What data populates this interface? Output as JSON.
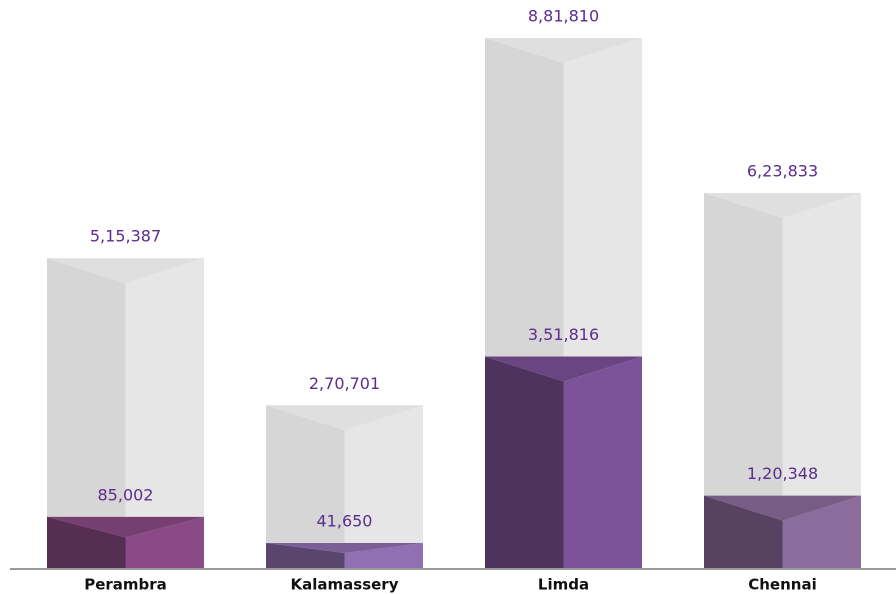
{
  "chart_data": {
    "type": "bar3d",
    "categories": [
      "Perambra",
      "Kalamassery",
      "Limda",
      "Chennai"
    ],
    "series": [
      {
        "values": [
          515387,
          270701,
          881810,
          623833
        ],
        "value_labels": [
          "5,15,387",
          "2,70,701",
          "8,81,810",
          "6,23,833"
        ],
        "colors": [
          "#e6e6e6",
          "#e6e6e6",
          "#e6e6e6",
          "#e6e6e6"
        ]
      },
      {
        "values": [
          85002,
          41650,
          351816,
          120348
        ],
        "value_labels": [
          "85,002",
          "41,650",
          "3,51,816",
          "1,20,348"
        ],
        "colors": [
          "#8a4a85",
          "#9070b0",
          "#7c5298",
          "#8c6c9c"
        ]
      }
    ]
  }
}
